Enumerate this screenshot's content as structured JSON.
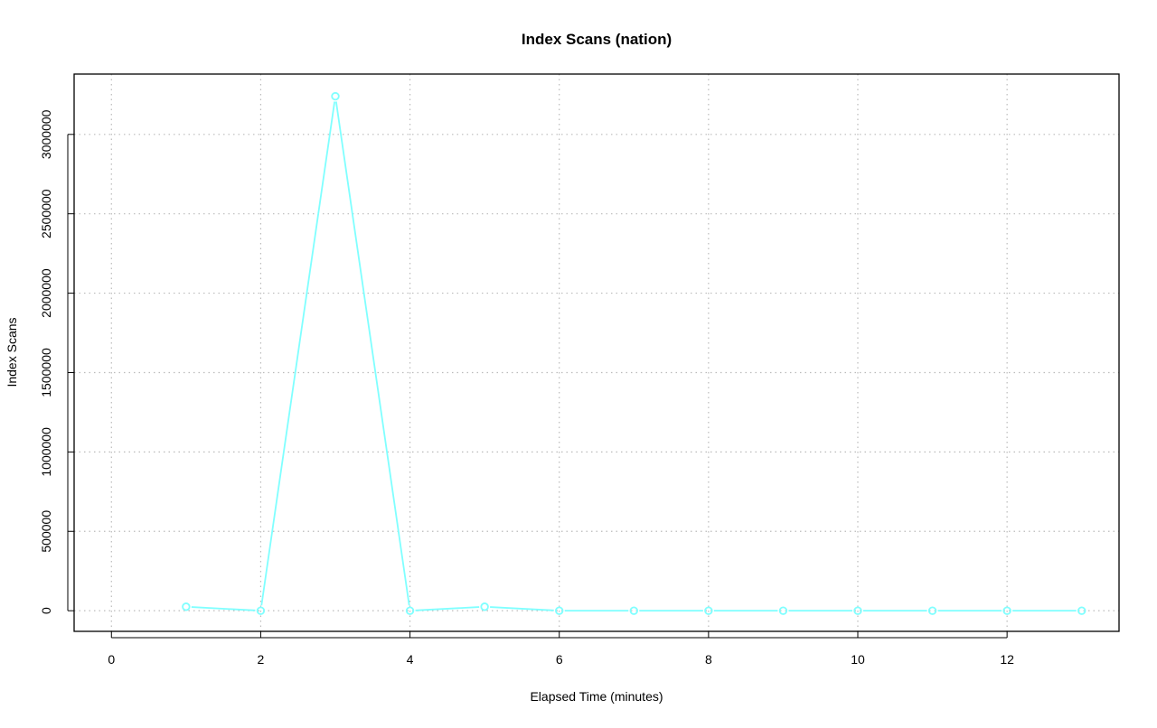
{
  "chart_data": {
    "type": "line",
    "title": "Index Scans (nation)",
    "xlabel": "Elapsed Time (minutes)",
    "ylabel": "Index Scans",
    "xlim": [
      -0.5,
      13.5
    ],
    "ylim": [
      -130000,
      3380000
    ],
    "xticks": [
      0,
      2,
      4,
      6,
      8,
      10,
      12
    ],
    "yticks": [
      0,
      500000,
      1000000,
      1500000,
      2000000,
      2500000,
      3000000
    ],
    "grid": true,
    "series": [
      {
        "color": "#80ffff",
        "x": [
          1,
          2,
          3,
          4,
          5,
          6,
          7,
          8,
          9,
          10,
          11,
          12,
          13
        ],
        "y": [
          25000,
          0,
          3240000,
          0,
          25000,
          0,
          0,
          0,
          0,
          0,
          0,
          0,
          0
        ]
      }
    ]
  }
}
